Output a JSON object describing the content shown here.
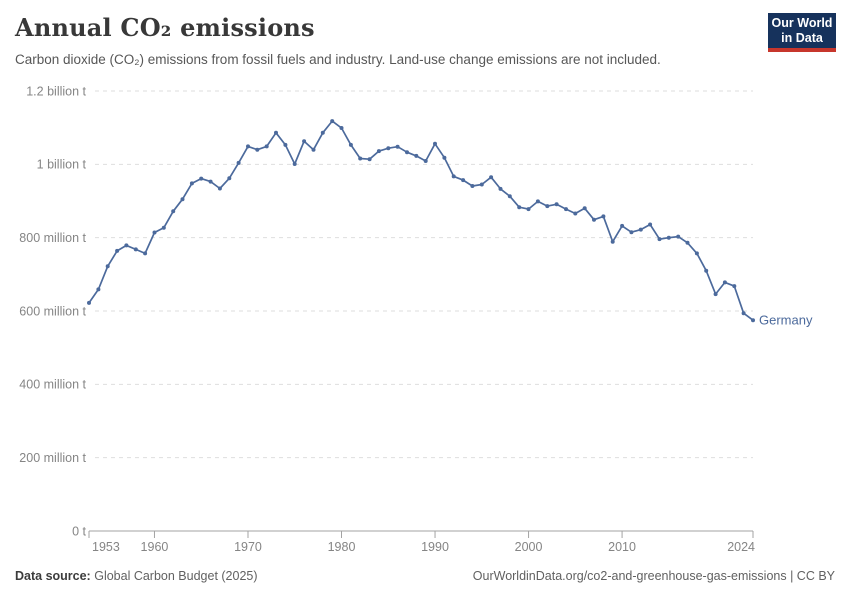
{
  "header": {
    "title": "Annual CO₂ emissions",
    "subtitle": "Carbon dioxide (CO₂) emissions from fossil fuels and industry. Land-use change emissions are not included.",
    "logo": {
      "line1": "Our World",
      "line2": "in Data",
      "bg": "#16325c",
      "accent": "#c7362c"
    }
  },
  "footer": {
    "source_label": "Data source:",
    "source_text": "Global Carbon Budget (2025)",
    "credit": "OurWorldinData.org/co2-and-greenhouse-gas-emissions | CC BY"
  },
  "colors": {
    "series": "#4C6A9C",
    "grid": "#dedede",
    "axis_line": "#a3a3a3",
    "tick_text": "#858585"
  },
  "chart_data": {
    "type": "line",
    "title": "Annual CO₂ emissions",
    "unit": "tonnes",
    "grid": "horizontal dashed",
    "legend_position": "end-of-line label",
    "xlim": [
      1953,
      2024
    ],
    "ylim": [
      0,
      1200
    ],
    "x_ticks": [
      {
        "value": 1953,
        "label": "1953"
      },
      {
        "value": 1960,
        "label": "1960"
      },
      {
        "value": 1970,
        "label": "1970"
      },
      {
        "value": 1980,
        "label": "1980"
      },
      {
        "value": 1990,
        "label": "1990"
      },
      {
        "value": 2000,
        "label": "2000"
      },
      {
        "value": 2010,
        "label": "2010"
      },
      {
        "value": 2024,
        "label": "2024"
      }
    ],
    "y_ticks": [
      {
        "value": 0,
        "label": "0 t"
      },
      {
        "value": 200,
        "label": "200 million t"
      },
      {
        "value": 400,
        "label": "400 million t"
      },
      {
        "value": 600,
        "label": "600 million t"
      },
      {
        "value": 800,
        "label": "800 million t"
      },
      {
        "value": 1000,
        "label": "1 billion t"
      },
      {
        "value": 1200,
        "label": "1.2 billion t"
      }
    ],
    "series": [
      {
        "name": "Germany",
        "end_label": "Germany",
        "unit": "million tonnes",
        "x": [
          1953,
          1954,
          1955,
          1956,
          1957,
          1958,
          1959,
          1960,
          1961,
          1962,
          1963,
          1964,
          1965,
          1966,
          1967,
          1968,
          1969,
          1970,
          1971,
          1972,
          1973,
          1974,
          1975,
          1976,
          1977,
          1978,
          1979,
          1980,
          1981,
          1982,
          1983,
          1984,
          1985,
          1986,
          1987,
          1988,
          1989,
          1990,
          1991,
          1992,
          1993,
          1994,
          1995,
          1996,
          1997,
          1998,
          1999,
          2000,
          2001,
          2002,
          2003,
          2004,
          2005,
          2006,
          2007,
          2008,
          2009,
          2010,
          2011,
          2012,
          2013,
          2014,
          2015,
          2016,
          2017,
          2018,
          2019,
          2020,
          2021,
          2022,
          2023,
          2024
        ],
        "values": [
          622,
          659,
          722,
          764,
          779,
          768,
          757,
          814,
          827,
          872,
          905,
          948,
          961,
          953,
          934,
          962,
          1004,
          1049,
          1040,
          1049,
          1086,
          1053,
          1001,
          1063,
          1040,
          1086,
          1118,
          1099,
          1053,
          1016,
          1014,
          1036,
          1044,
          1048,
          1033,
          1023,
          1009,
          1056,
          1018,
          967,
          957,
          941,
          945,
          965,
          933,
          913,
          883,
          878,
          899,
          886,
          891,
          878,
          866,
          880,
          849,
          858,
          789,
          832,
          815,
          822,
          836,
          796,
          800,
          803,
          786,
          757,
          710,
          646,
          678,
          668,
          594,
          575
        ]
      }
    ]
  }
}
